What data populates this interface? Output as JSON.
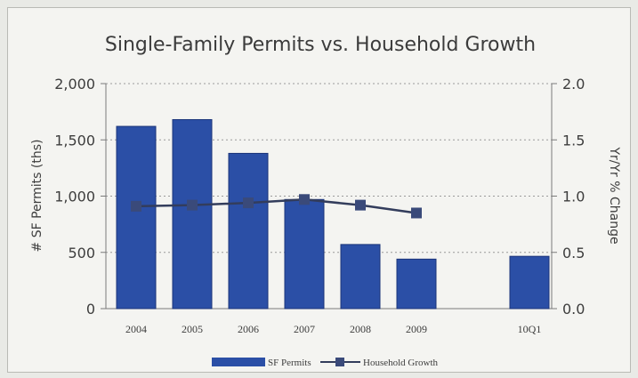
{
  "chart_data": {
    "type": "bar",
    "title": "Single-Family Permits vs. Household Growth",
    "categories": [
      "2004",
      "2005",
      "2006",
      "2007",
      "2008",
      "2009",
      "10Q1"
    ],
    "series": [
      {
        "name": "SF Permits",
        "type": "bar",
        "axis": "left",
        "values": [
          1620,
          1680,
          1380,
          970,
          570,
          440,
          465
        ]
      },
      {
        "name": "Household Growth",
        "type": "line",
        "axis": "right",
        "values": [
          0.91,
          0.92,
          0.94,
          0.97,
          0.92,
          0.85,
          null
        ]
      }
    ],
    "ylabel": "# SF Permits (ths)",
    "ylabel_right": "Yr/Yr % Change",
    "ylim": [
      0,
      2000
    ],
    "ylim_right": [
      0,
      2.0
    ],
    "yticks": [
      "0",
      "500",
      "1,000",
      "1,500",
      "2,000"
    ],
    "yticks_right": [
      "0.0",
      "0.5",
      "1.0",
      "1.5",
      "2.0"
    ],
    "grid": true,
    "legend_position": "bottom",
    "colors": {
      "bar": "#2b4fa6",
      "bar_edge": "#1b3479",
      "line": "#333d5c",
      "marker": "#3a4a7a"
    }
  }
}
